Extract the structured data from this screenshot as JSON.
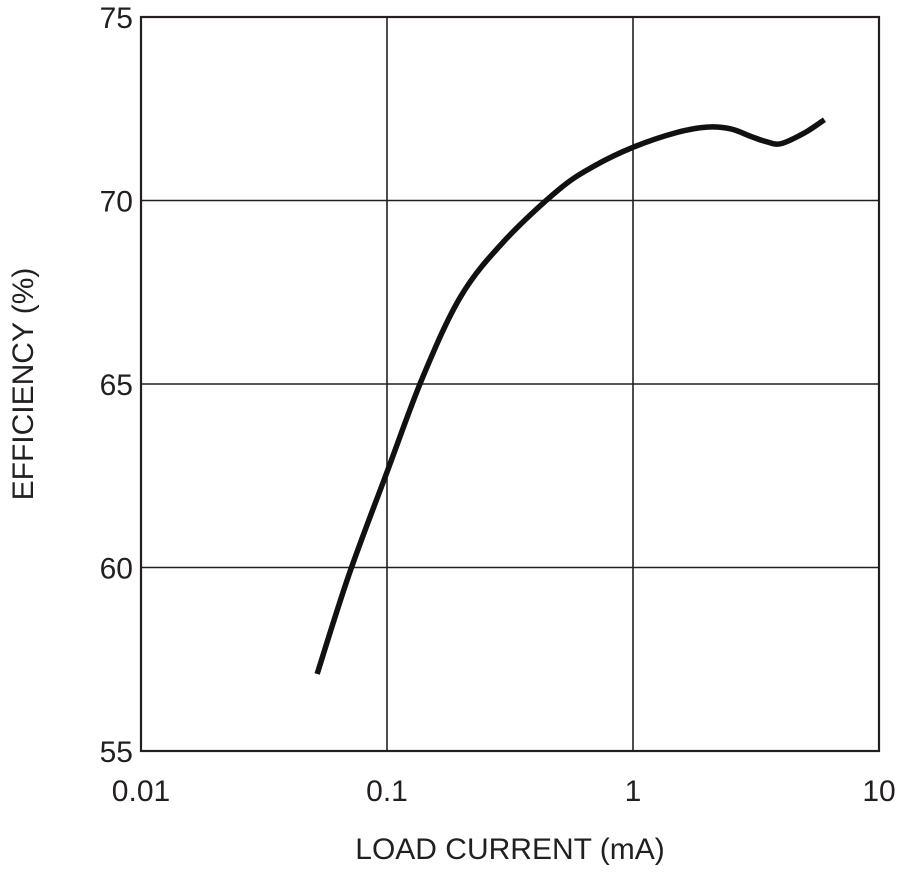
{
  "chart_data": {
    "type": "line",
    "title": "",
    "xlabel": "LOAD CURRENT (mA)",
    "ylabel": "EFFICIENCY (%)",
    "x_scale": "log",
    "xlim": [
      0.01,
      10
    ],
    "ylim": [
      55,
      75
    ],
    "x_ticks": [
      0.01,
      0.1,
      1,
      10
    ],
    "x_tick_labels": [
      "0.01",
      "0.1",
      "1",
      "10"
    ],
    "y_ticks": [
      55,
      60,
      65,
      70,
      75
    ],
    "y_tick_labels": [
      "55",
      "60",
      "65",
      "70",
      "75"
    ],
    "grid": true,
    "legend": "none",
    "colors": {
      "line": "#111111",
      "grid": "#231f20",
      "text": "#231f20"
    },
    "series": [
      {
        "x": [
          0.052,
          0.07,
          0.1,
          0.14,
          0.2,
          0.3,
          0.5,
          0.7,
          1.0,
          1.5,
          2.0,
          2.5,
          3.0,
          3.5,
          4.0,
          5.0,
          6.0
        ],
        "y": [
          57.1,
          59.8,
          62.6,
          65.2,
          67.4,
          68.9,
          70.3,
          70.95,
          71.45,
          71.85,
          72.0,
          71.95,
          71.75,
          71.6,
          71.55,
          71.85,
          72.2
        ]
      }
    ]
  }
}
